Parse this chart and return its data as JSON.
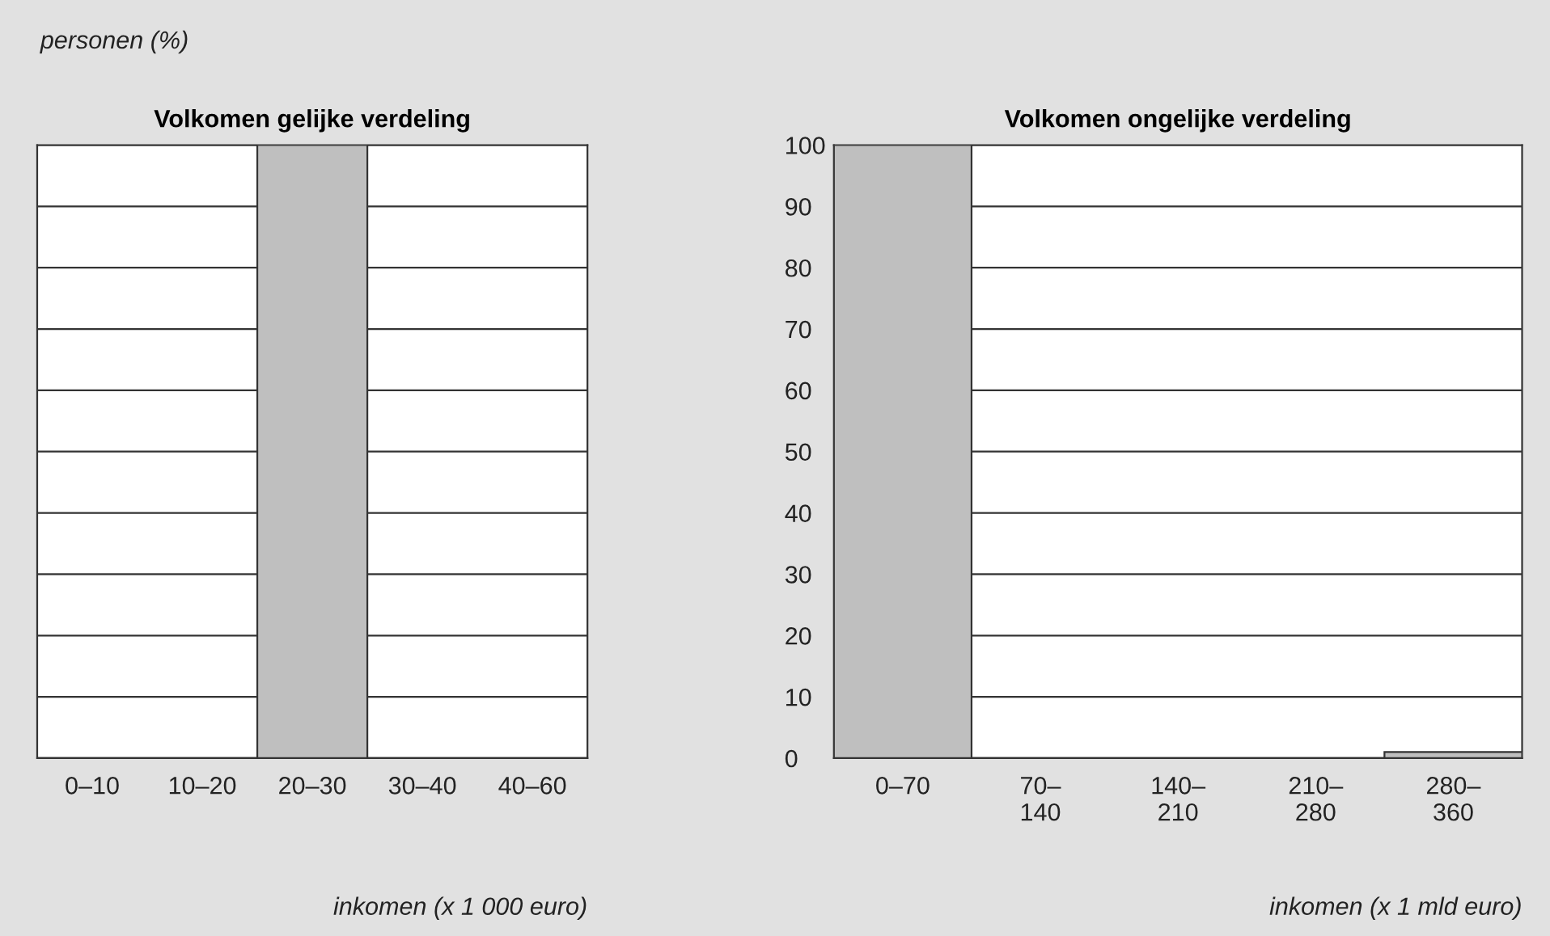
{
  "chart_data": [
    {
      "type": "bar",
      "title": "Volkomen gelijke verdeling",
      "ylabel": "personen (%)",
      "xlabel": "inkomen (x 1 000 euro)",
      "categories": [
        "0–10",
        "10–20",
        "20–30",
        "30–40",
        "40–60"
      ],
      "values": [
        0,
        0,
        100,
        0,
        0
      ],
      "color": "#bfbfbf",
      "ylim": [
        0,
        100
      ],
      "yticks": [
        0,
        10,
        20,
        30,
        40,
        50,
        60,
        70,
        80,
        90,
        100
      ],
      "grid": "y",
      "tick_labels": "x"
    },
    {
      "type": "bar",
      "title": "Volkomen ongelijke verdeling",
      "xlabel": "inkomen (x 1 mld euro)",
      "categories": [
        "0–70",
        "70–140",
        "140–210",
        "210–280",
        "280–360"
      ],
      "values": [
        100,
        0,
        0,
        0,
        1
      ],
      "color": "#bfbfbf",
      "ylim": [
        0,
        100
      ],
      "yticks": [
        0,
        10,
        20,
        30,
        40,
        50,
        60,
        70,
        80,
        90,
        100
      ],
      "grid": "y"
    }
  ]
}
